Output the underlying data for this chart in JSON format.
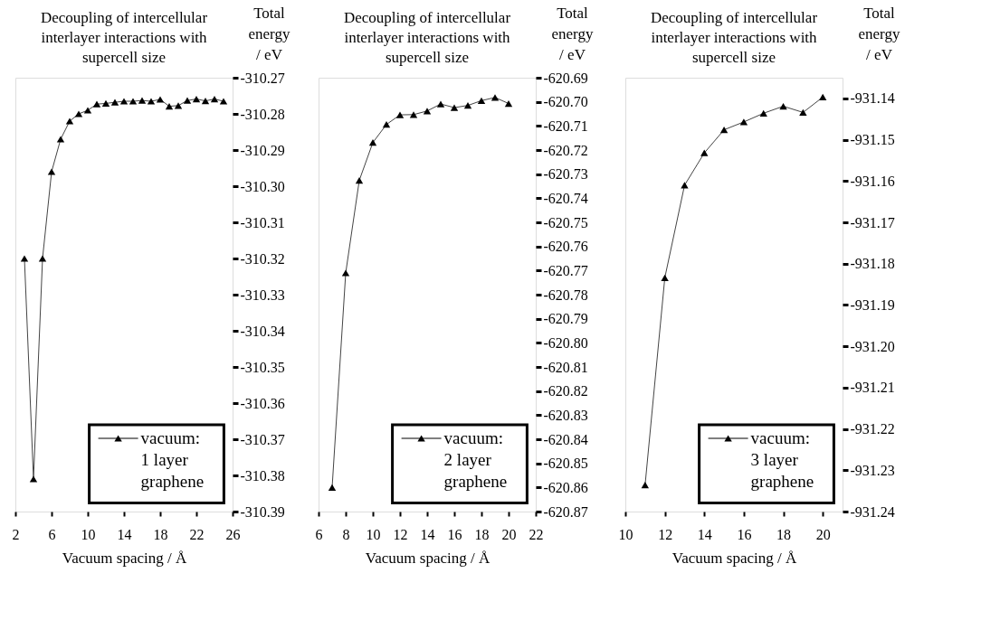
{
  "chart_data": [
    {
      "type": "line",
      "title": "Decoupling of intercellular\ninterlayer interactions with\nsupercell size",
      "xlabel": "Vacuum spacing / Å",
      "ylabel": "Total\nenergy\n/ eV",
      "x": [
        3,
        4,
        5,
        6,
        7,
        8,
        9,
        10,
        11,
        12,
        13,
        14,
        15,
        16,
        17,
        18,
        19,
        20,
        21,
        22,
        23,
        24,
        25
      ],
      "series": [
        {
          "name": "vacuum:\n1 layer\ngraphene",
          "color": "#000000",
          "values": [
            -310.32,
            -310.381,
            -310.32,
            -310.296,
            -310.287,
            -310.282,
            -310.28,
            -310.279,
            -310.2773,
            -310.2771,
            -310.2768,
            -310.2765,
            -310.2765,
            -310.2763,
            -310.2765,
            -310.276,
            -310.2779,
            -310.2777,
            -310.2763,
            -310.2759,
            -310.2764,
            -310.2759,
            -310.2765
          ]
        }
      ],
      "xlim": [
        2,
        26
      ],
      "xticks": [
        2,
        6,
        10,
        14,
        18,
        22,
        26
      ],
      "ylim": [
        -310.39,
        -310.27
      ],
      "yticks": [
        -310.39,
        -310.38,
        -310.37,
        -310.36,
        -310.35,
        -310.34,
        -310.33,
        -310.32,
        -310.31,
        {
          "value": -310.3,
          "label": "-310.30"
        },
        -310.29,
        -310.28,
        -310.27
      ],
      "legend": "bottom right",
      "marker": "triangle",
      "line_style": "solid",
      "grid": false
    },
    {
      "type": "line",
      "title": "Decoupling of intercellular\ninterlayer interactions with\nsupercell size",
      "xlabel": "Vacuum spacing / Å",
      "ylabel": "Total\nenergy\n/ eV",
      "x": [
        7,
        8,
        9,
        10,
        11,
        12,
        13,
        14,
        15,
        16,
        17,
        18,
        19,
        20
      ],
      "series": [
        {
          "name": "vacuum:\n2 layer\ngraphene",
          "color": "#000000",
          "values": [
            -620.86,
            -620.771,
            -620.7326,
            -620.7169,
            -620.7094,
            -620.7054,
            -620.7053,
            -620.7038,
            -620.7009,
            -620.7024,
            -620.7015,
            -620.6995,
            -620.6982,
            -620.7007
          ]
        }
      ],
      "xlim": [
        6,
        22
      ],
      "xticks": [
        6,
        8,
        10,
        12,
        14,
        16,
        18,
        20,
        22
      ],
      "ylim": [
        -620.87,
        -620.69
      ],
      "yticks": [
        -620.87,
        -620.86,
        -620.85,
        -620.84,
        -620.83,
        -620.82,
        -620.81,
        {
          "value": -620.8,
          "label": "-620.80"
        },
        -620.79,
        -620.78,
        -620.77,
        -620.76,
        -620.75,
        -620.74,
        -620.73,
        -620.72,
        -620.71,
        {
          "value": -620.7,
          "label": "-620.70"
        },
        -620.69
      ],
      "legend": "bottom right",
      "marker": "triangle",
      "line_style": "solid",
      "grid": false
    },
    {
      "type": "line",
      "title": "Decoupling of intercellular\ninterlayer interactions with\nsupercell size",
      "xlabel": "Vacuum spacing / Å",
      "ylabel": "Total\nenergy\n/ eV",
      "x": [
        11,
        12,
        13,
        14,
        15,
        16,
        17,
        18,
        19,
        20
      ],
      "series": [
        {
          "name": "vacuum:\n3 layer\ngraphene",
          "color": "#000000",
          "values": [
            -931.2336,
            -931.1834,
            -931.161,
            -931.1532,
            -931.1476,
            -931.1457,
            -931.1436,
            -931.1419,
            -931.1434,
            -931.1397
          ]
        }
      ],
      "xlim": [
        10,
        21
      ],
      "xticks": [
        10,
        12,
        14,
        16,
        18,
        20
      ],
      "ylim": [
        -931.24,
        -931.135
      ],
      "yticks": [
        -931.24,
        -931.23,
        -931.22,
        -931.21,
        {
          "value": -931.2,
          "label": "-931.20"
        },
        -931.19,
        -931.18,
        -931.17,
        -931.16,
        -931.15,
        -931.14
      ],
      "legend": "bottom right",
      "marker": "triangle",
      "line_style": "solid",
      "grid": false
    }
  ]
}
